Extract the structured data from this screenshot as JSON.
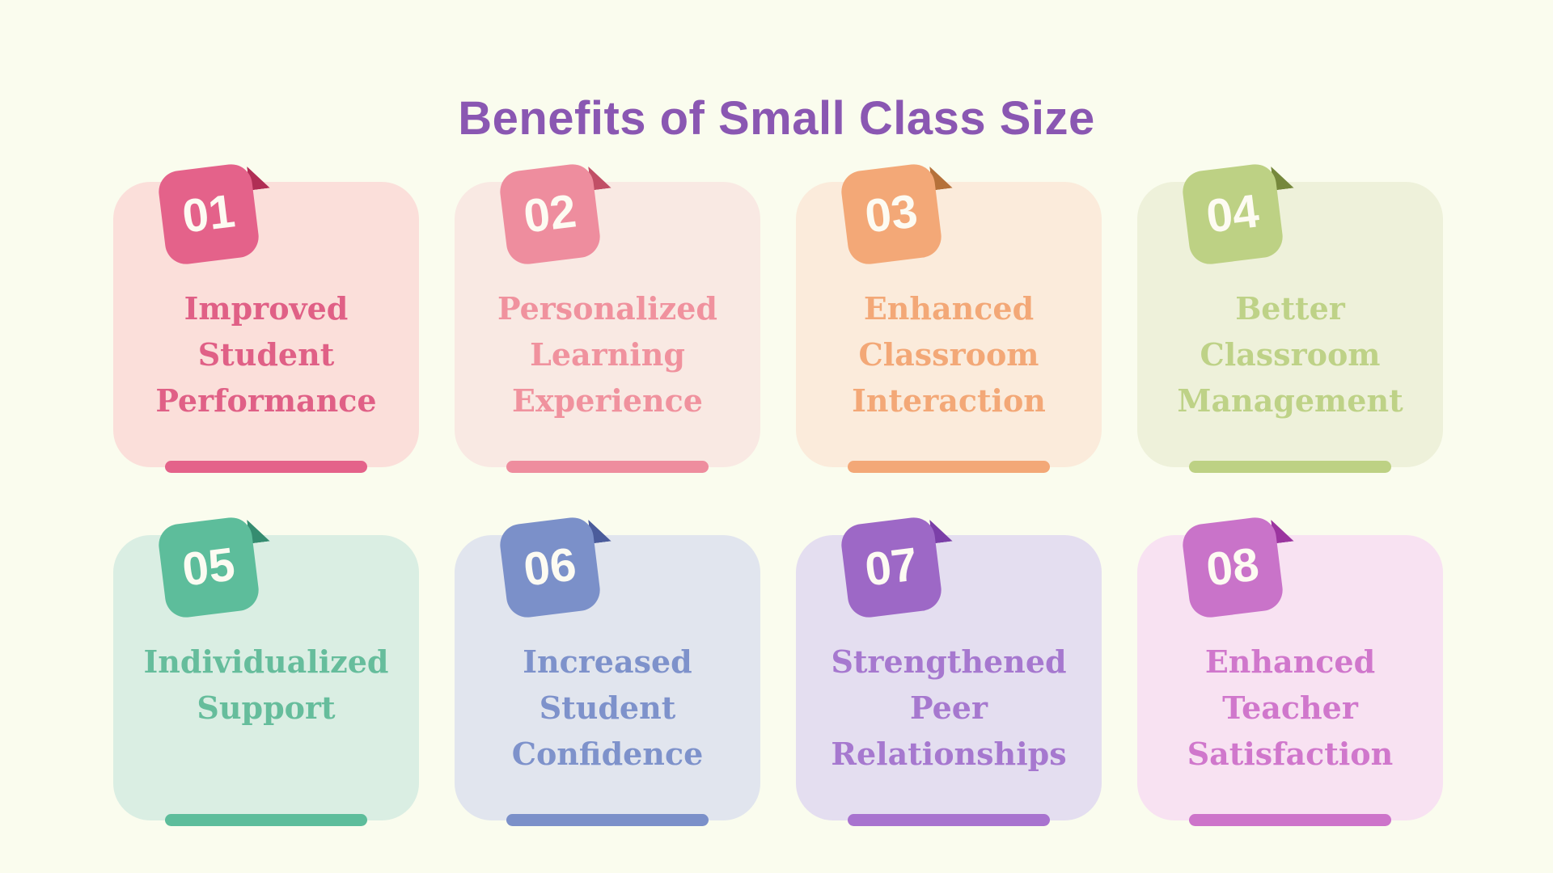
{
  "page": {
    "title": "Benefits of Small Class Size",
    "title_color": "#8a57b2",
    "background": "#fafcee"
  },
  "cards": [
    {
      "number": "01",
      "lines": [
        "Improved",
        "Student",
        "Performance"
      ],
      "badge_color": "#e4628a",
      "fold_color": "#b02e55",
      "card_bg": "#fbdfda",
      "text_color": "#e06086",
      "bar_color": "#e4628a"
    },
    {
      "number": "02",
      "lines": [
        "Personalized",
        "Learning",
        "Experience"
      ],
      "badge_color": "#ee8d9e",
      "fold_color": "#c14f66",
      "card_bg": "#f9e9e3",
      "text_color": "#f0929e",
      "bar_color": "#ee8d9e"
    },
    {
      "number": "03",
      "lines": [
        "Enhanced",
        "Classroom",
        "Interaction"
      ],
      "badge_color": "#f3a877",
      "fold_color": "#b5713a",
      "card_bg": "#fbebdb",
      "text_color": "#f3a877",
      "bar_color": "#f3a877"
    },
    {
      "number": "04",
      "lines": [
        "Better",
        "Classroom",
        "Management"
      ],
      "badge_color": "#bdd184",
      "fold_color": "#75883c",
      "card_bg": "#eef1da",
      "text_color": "#bed287",
      "bar_color": "#bdd184"
    },
    {
      "number": "05",
      "lines": [
        "Individualized",
        "Support"
      ],
      "badge_color": "#5dbd9b",
      "fold_color": "#358c70",
      "card_bg": "#daeee3",
      "text_color": "#66bd9c",
      "bar_color": "#5dbd9b"
    },
    {
      "number": "06",
      "lines": [
        "Increased",
        "Student",
        "Confidence"
      ],
      "badge_color": "#7b90c9",
      "fold_color": "#4b5c9b",
      "card_bg": "#e1e5ee",
      "text_color": "#7e92cb",
      "bar_color": "#7b90c9"
    },
    {
      "number": "07",
      "lines": [
        "Strengthened",
        "Peer",
        "Relationships"
      ],
      "badge_color": "#9d68c6",
      "fold_color": "#7b3fa8",
      "card_bg": "#e4def0",
      "text_color": "#a678cf",
      "bar_color": "#a873cf"
    },
    {
      "number": "08",
      "lines": [
        "Enhanced",
        "Teacher",
        "Satisfaction"
      ],
      "badge_color": "#c973c9",
      "fold_color": "#9b359f",
      "card_bg": "#f8e2f2",
      "text_color": "#d077cc",
      "bar_color": "#cd74ca"
    }
  ]
}
